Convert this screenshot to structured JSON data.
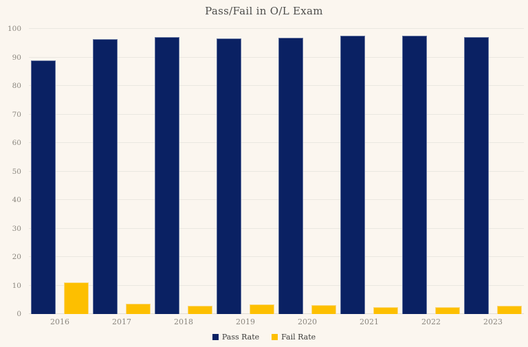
{
  "colors": {
    "background": "#fbf6ef",
    "gridline": "#eae7e0",
    "baseline": "#e2ded5",
    "title_text": "#4d4d4b",
    "axis_text": "#8b877f",
    "legend_text": "#3c3c3a",
    "pass": "#0a2163",
    "fail": "#fdbf00"
  },
  "chart_data": {
    "type": "bar",
    "title": "Pass/Fail in O/L Exam",
    "categories": [
      "2016",
      "2017",
      "2018",
      "2019",
      "2020",
      "2021",
      "2022",
      "2023"
    ],
    "series": [
      {
        "name": "Pass Rate",
        "key": "pass",
        "color": "#0a2163",
        "values": [
          89,
          96.5,
          97.2,
          96.7,
          96.8,
          97.5,
          97.7,
          97
        ]
      },
      {
        "name": "Fail Rate",
        "key": "fail",
        "color": "#fdbf00",
        "values": [
          11,
          3.5,
          2.8,
          3.3,
          3.2,
          2.5,
          2.3,
          3
        ]
      }
    ],
    "xlabel": "",
    "ylabel": "",
    "ylim": [
      0,
      100
    ],
    "yticks": [
      0,
      10,
      20,
      30,
      40,
      50,
      60,
      70,
      80,
      90,
      100
    ],
    "grid": true,
    "legend_position": "bottom"
  }
}
